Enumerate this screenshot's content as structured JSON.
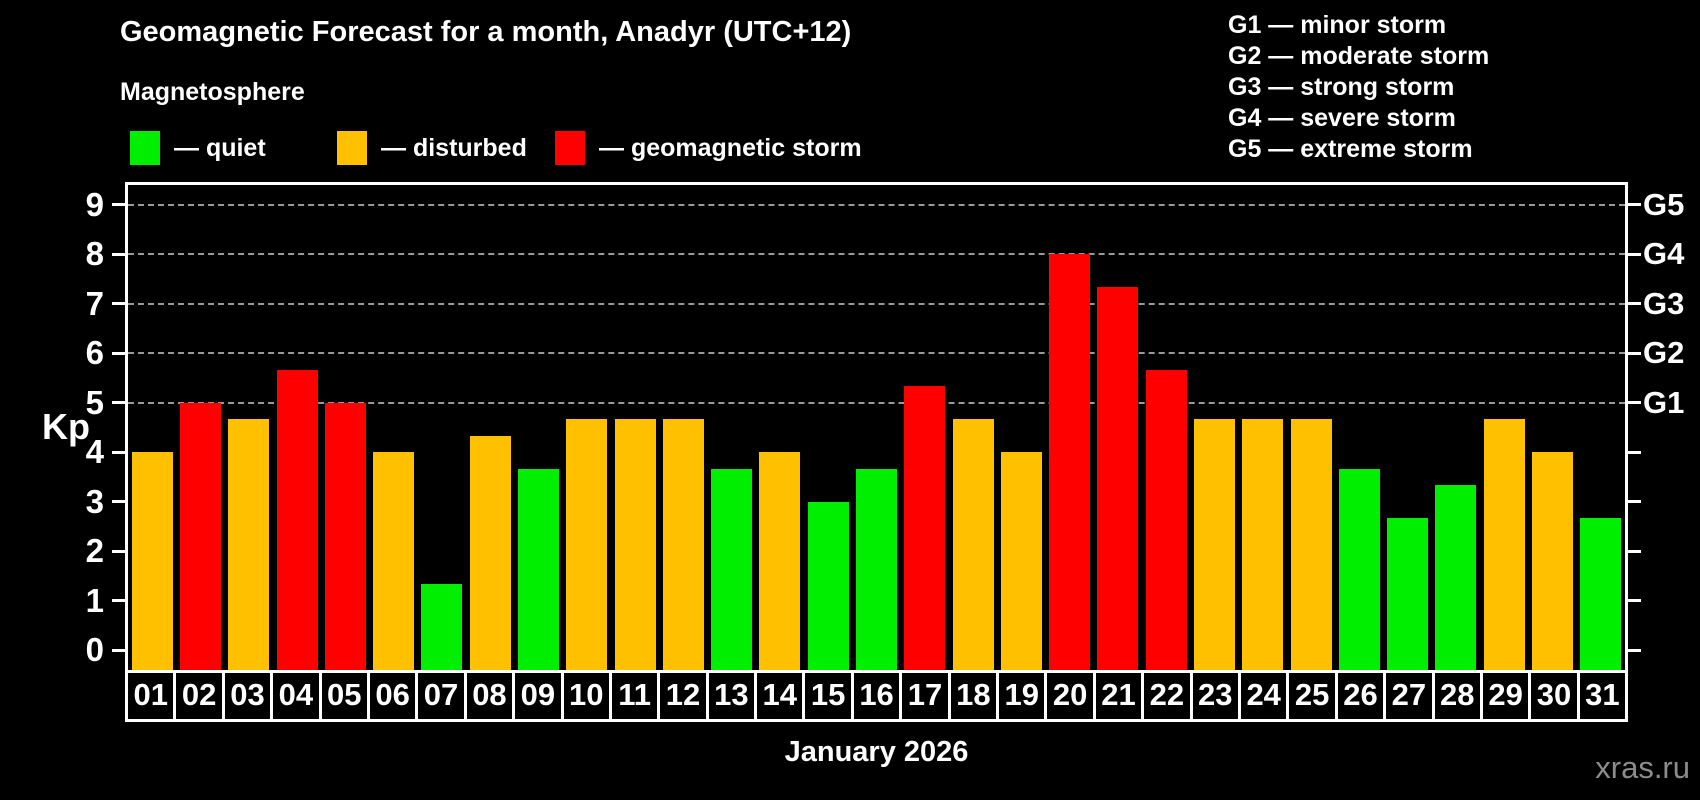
{
  "header": {
    "title": "Geomagnetic Forecast for a month, Anadyr (UTC+12)",
    "subtitle": "Magnetosphere"
  },
  "legend": {
    "items": [
      {
        "key": "quiet",
        "label": "— quiet",
        "color": "#00EE00"
      },
      {
        "key": "disturbed",
        "label": "— disturbed",
        "color": "#FFC000"
      },
      {
        "key": "storm",
        "label": "— geomagnetic storm",
        "color": "#FF0000"
      }
    ]
  },
  "g_legend": {
    "items": [
      "G1 — minor storm",
      "G2 — moderate storm",
      "G3 — strong storm",
      "G4 — severe storm",
      "G5 — extreme storm"
    ]
  },
  "chart_data": {
    "type": "bar",
    "title": "Geomagnetic Forecast for a month, Anadyr (UTC+12)",
    "xlabel": "January 2026",
    "ylabel": "Kp",
    "ylim": [
      0,
      9
    ],
    "grid": "dashed horizontal at Kp 5-9 only",
    "grid_color": "#999999",
    "legend_position": "top-left",
    "categories": [
      "01",
      "02",
      "03",
      "04",
      "05",
      "06",
      "07",
      "08",
      "09",
      "10",
      "11",
      "12",
      "13",
      "14",
      "15",
      "16",
      "17",
      "18",
      "19",
      "20",
      "21",
      "22",
      "23",
      "24",
      "25",
      "26",
      "27",
      "28",
      "29",
      "30",
      "31"
    ],
    "values": [
      4.0,
      5.0,
      4.67,
      5.67,
      5.0,
      4.0,
      1.33,
      4.33,
      3.67,
      4.67,
      4.67,
      4.67,
      3.67,
      4.0,
      3.0,
      3.67,
      5.33,
      4.67,
      4.0,
      8.0,
      7.33,
      5.67,
      4.67,
      4.67,
      4.67,
      3.67,
      2.67,
      3.33,
      4.67,
      4.0,
      2.67
    ],
    "statuses": [
      "disturbed",
      "storm",
      "disturbed",
      "storm",
      "storm",
      "disturbed",
      "quiet",
      "disturbed",
      "quiet",
      "disturbed",
      "disturbed",
      "disturbed",
      "quiet",
      "disturbed",
      "quiet",
      "quiet",
      "storm",
      "disturbed",
      "disturbed",
      "storm",
      "storm",
      "storm",
      "disturbed",
      "disturbed",
      "disturbed",
      "quiet",
      "quiet",
      "quiet",
      "disturbed",
      "disturbed",
      "quiet"
    ],
    "status_colors": {
      "quiet": "#00EE00",
      "disturbed": "#FFC000",
      "storm": "#FF0000"
    },
    "y_ticks": [
      0,
      1,
      2,
      3,
      4,
      5,
      6,
      7,
      8,
      9
    ],
    "gridlines_at": [
      5,
      6,
      7,
      8,
      9
    ],
    "right_axis_labels": [
      {
        "kp": 5,
        "label": "G1"
      },
      {
        "kp": 6,
        "label": "G2"
      },
      {
        "kp": 7,
        "label": "G3"
      },
      {
        "kp": 8,
        "label": "G4"
      },
      {
        "kp": 9,
        "label": "G5"
      }
    ]
  },
  "footer": {
    "month_label": "January 2026",
    "watermark": "xras.ru"
  }
}
